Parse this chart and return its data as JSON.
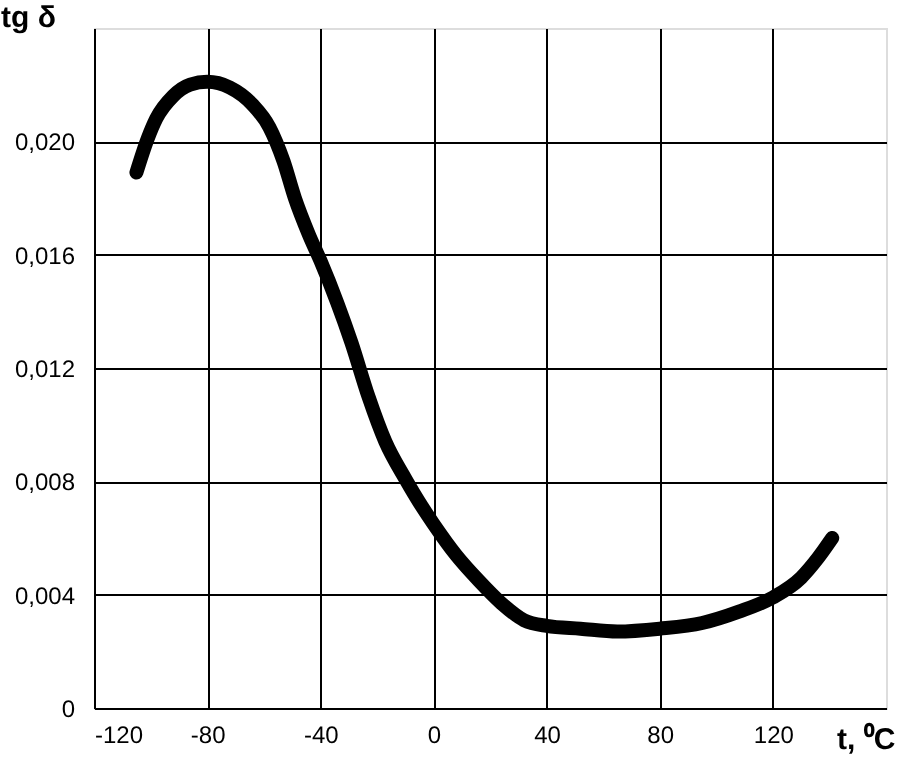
{
  "chart_data": {
    "type": "line",
    "xlabel": "t, ⁰C",
    "ylabel": "tg δ",
    "x": [
      -105,
      -101,
      -98,
      -92,
      -86,
      -80,
      -72,
      -64,
      -58,
      -53,
      -49,
      -44,
      -40,
      -34,
      -29,
      -23,
      -17,
      -10,
      -4,
      0,
      8,
      16,
      24,
      32,
      40,
      52,
      65,
      80,
      95,
      108,
      120,
      130,
      136,
      141
    ],
    "series": [
      {
        "color": "#000000",
        "values": [
          0.0189,
          0.0201,
          0.0208,
          0.0216,
          0.022,
          0.0221,
          0.0219,
          0.0213,
          0.0205,
          0.0193,
          0.018,
          0.0167,
          0.0158,
          0.0143,
          0.0129,
          0.011,
          0.0094,
          0.0081,
          0.0071,
          0.0065,
          0.0054,
          0.0045,
          0.0037,
          0.0031,
          0.0029,
          0.0028,
          0.0027,
          0.0028,
          0.003,
          0.0034,
          0.0039,
          0.0046,
          0.0053,
          0.006
        ]
      }
    ],
    "xlim": [
      -120,
      160
    ],
    "xticks": [
      -120,
      -80,
      -40,
      0,
      40,
      80,
      120
    ],
    "ylim": [
      0,
      0.024
    ],
    "yticks": [
      0,
      {
        "value": 0.004,
        "label": "0,004"
      },
      {
        "value": 0.008,
        "label": "0,008"
      },
      {
        "value": 0.012,
        "label": "0,012"
      },
      {
        "value": 0.016,
        "label": "0,016"
      },
      {
        "value": 0.02,
        "label": "0,020"
      }
    ],
    "grid": true,
    "line_style": "solid"
  }
}
